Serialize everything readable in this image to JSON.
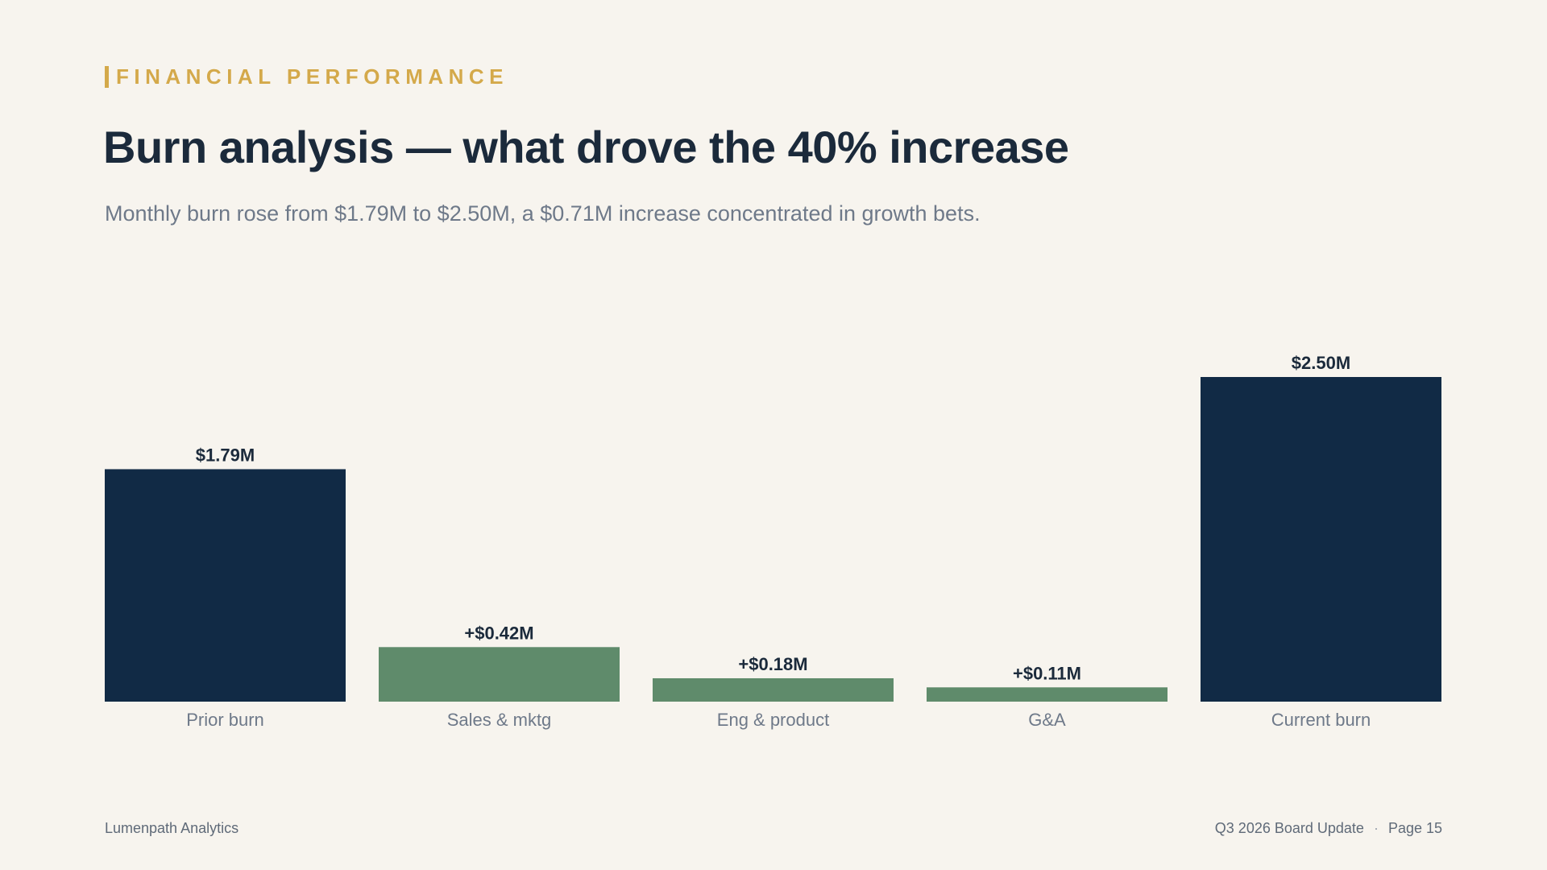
{
  "header": {
    "eyebrow": "FINANCIAL PERFORMANCE",
    "title": "Burn analysis — what drove the 40% increase",
    "subtitle": "Monthly burn rose from $1.79M to $2.50M, a $0.71M increase concentrated in growth bets."
  },
  "chart_data": {
    "type": "bar",
    "title": "",
    "xlabel": "",
    "ylabel": "",
    "ylim": [
      0,
      2.5
    ],
    "categories": [
      "Prior burn",
      "Sales & mktg",
      "Eng & product",
      "G&A",
      "Current burn"
    ],
    "values": [
      1.79,
      0.42,
      0.18,
      0.11,
      2.5
    ],
    "labels": [
      "$1.79M",
      "+$0.42M",
      "+$0.18M",
      "+$0.11M",
      "$2.50M"
    ],
    "kinds": [
      "total",
      "increase",
      "increase",
      "increase",
      "total"
    ],
    "colors": {
      "total": "#112a45",
      "increase": "#5f8b6b"
    },
    "grid": false
  },
  "footer": {
    "company": "Lumenpath Analytics",
    "deck": "Q3 2026 Board Update",
    "separator": "·",
    "page": "Page 15"
  }
}
